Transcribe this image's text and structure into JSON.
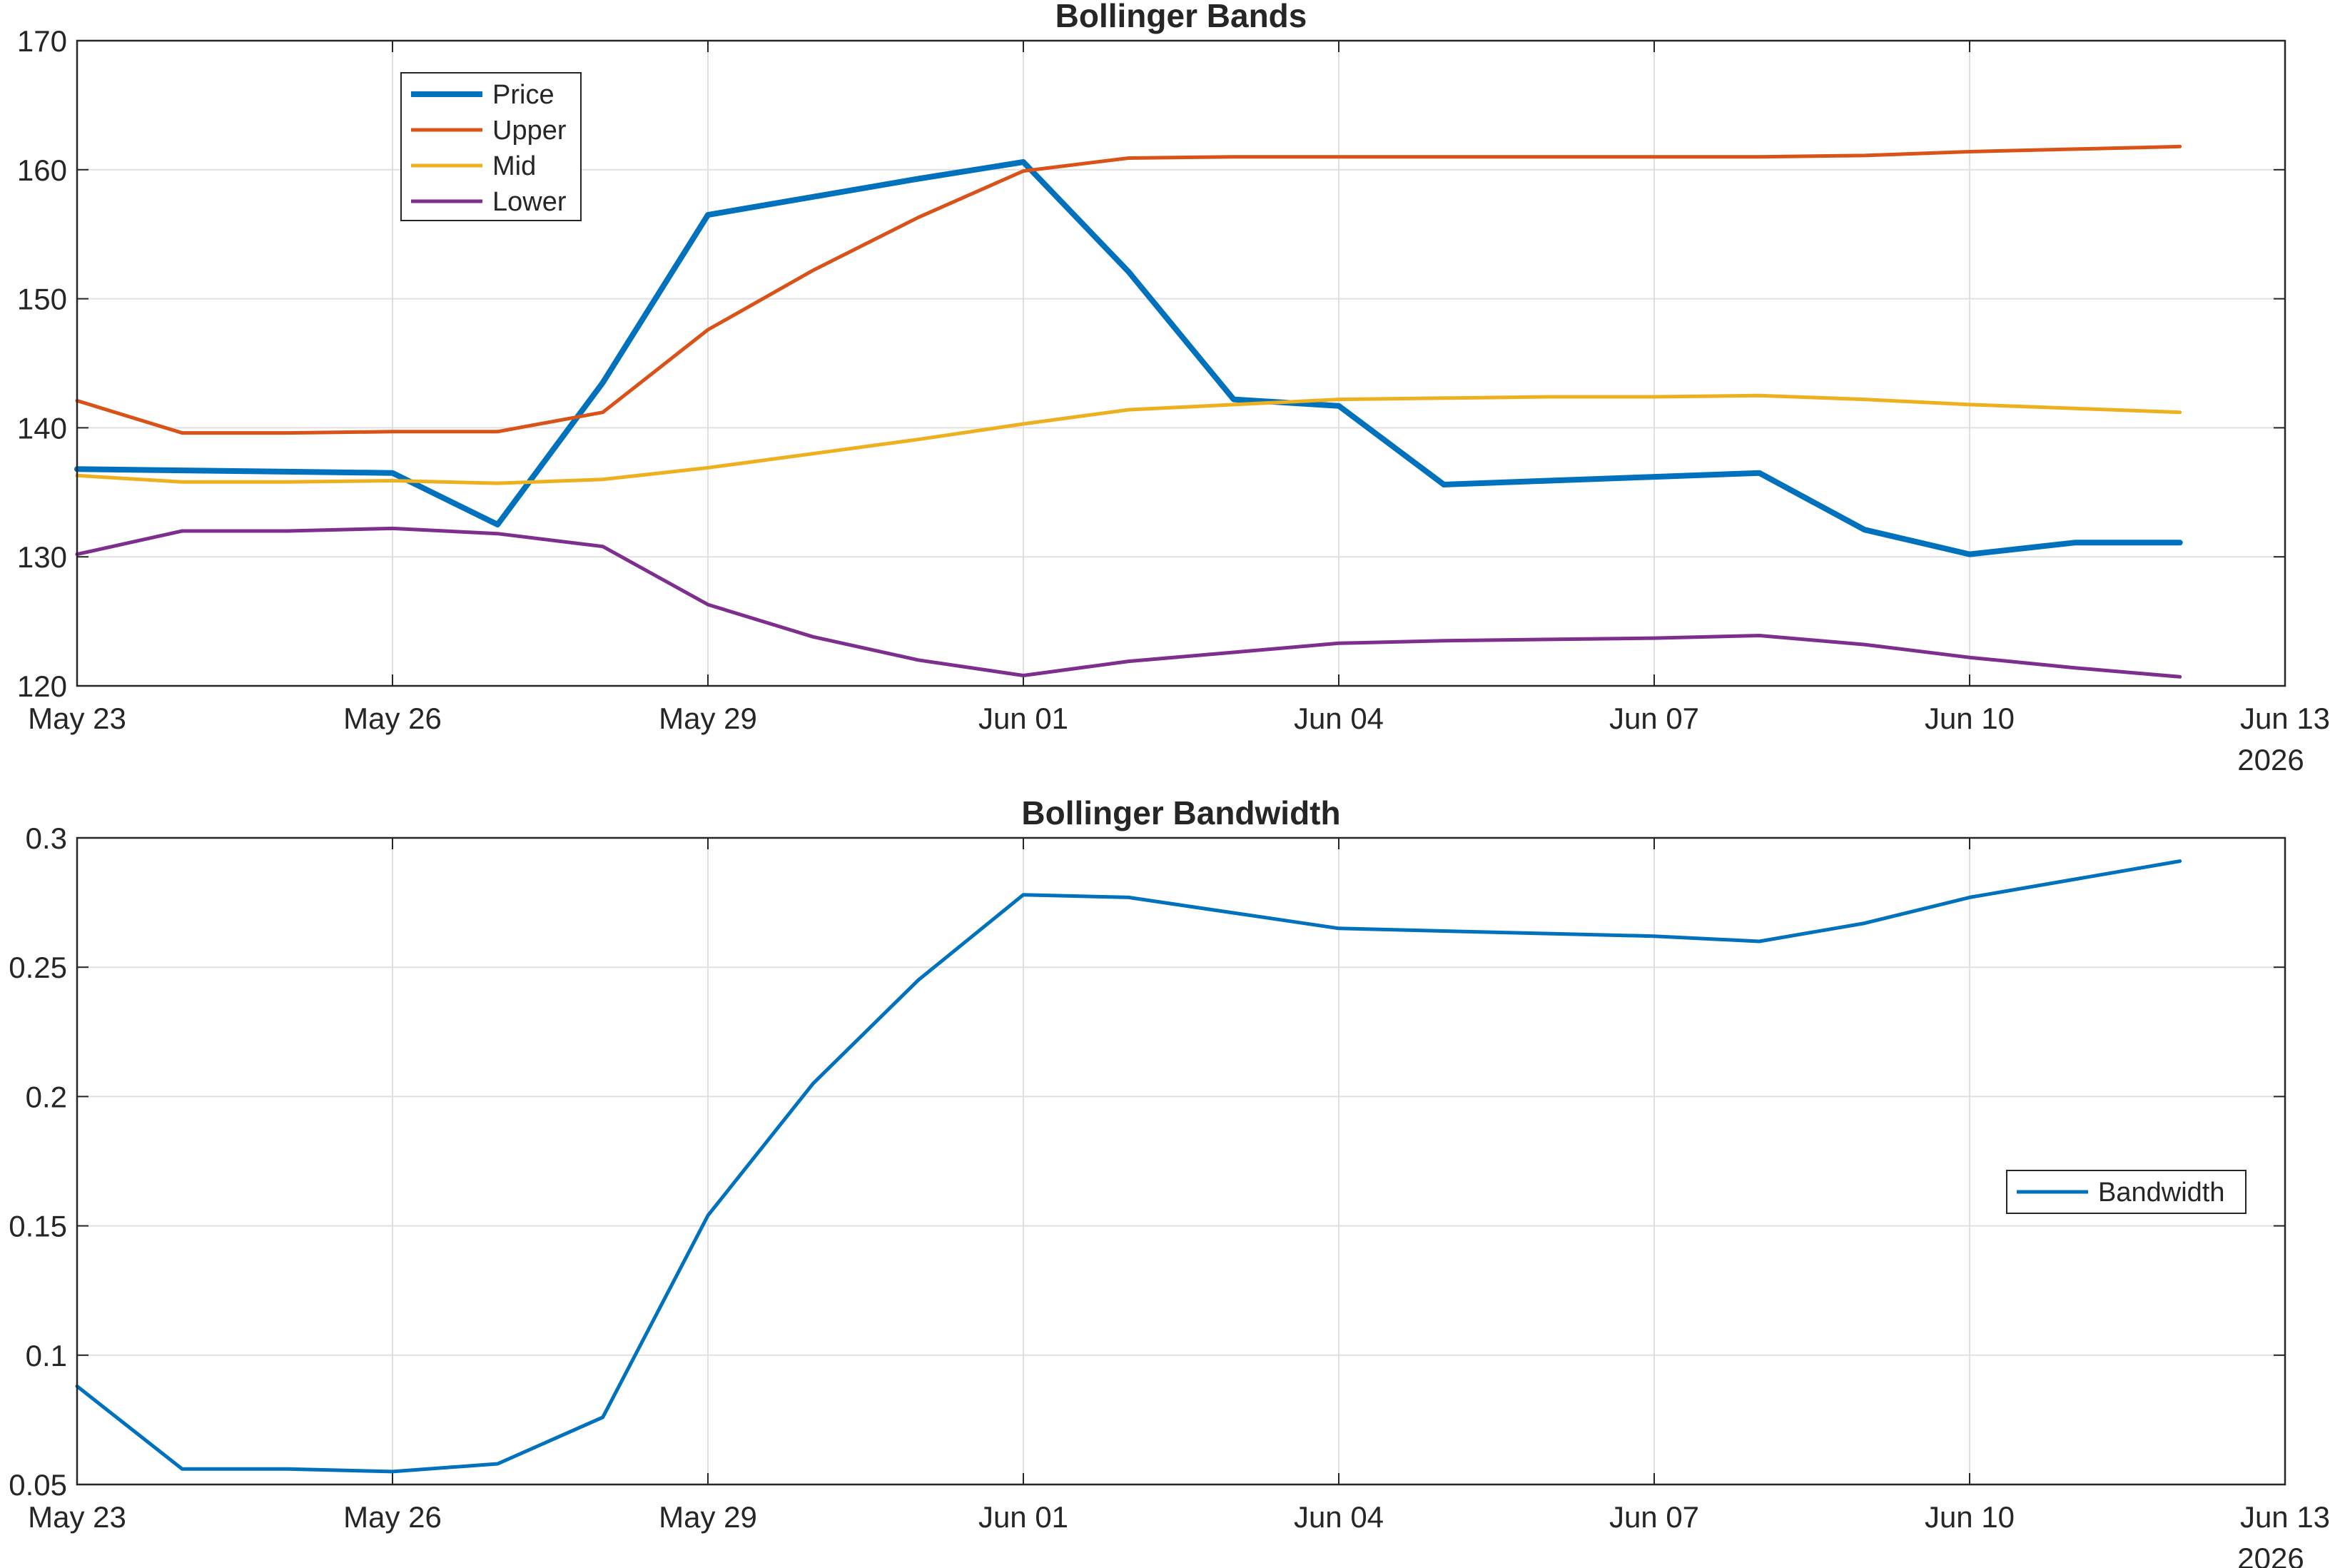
{
  "chart_data": [
    {
      "type": "line",
      "title": "Bollinger Bands",
      "xlabel": "",
      "ylabel": "",
      "x_axis": "date",
      "xlim": [
        "2026-05-23",
        "2026-06-13"
      ],
      "x_ticks": [
        "2026-05-23",
        "2026-05-26",
        "2026-05-29",
        "2026-06-01",
        "2026-06-04",
        "2026-06-07",
        "2026-06-10",
        "2026-06-13"
      ],
      "x_tick_labels": [
        "May 23",
        "May 26",
        "May 29",
        "Jun 01",
        "Jun 04",
        "Jun 07",
        "Jun 10",
        "Jun 13"
      ],
      "x_secondary_label": "2026",
      "ylim": [
        120,
        170
      ],
      "y_ticks": [
        120,
        130,
        140,
        150,
        160,
        170
      ],
      "grid": true,
      "legend_position": "top-left",
      "x": [
        "2026-05-23",
        "2026-05-24",
        "2026-05-25",
        "2026-05-26",
        "2026-05-27",
        "2026-05-28",
        "2026-05-29",
        "2026-05-30",
        "2026-05-31",
        "2026-06-01",
        "2026-06-02",
        "2026-06-03",
        "2026-06-04",
        "2026-06-05",
        "2026-06-06",
        "2026-06-07",
        "2026-06-08",
        "2026-06-09",
        "2026-06-10",
        "2026-06-11",
        "2026-06-12"
      ],
      "series": [
        {
          "name": "Price",
          "color": "#0072BD",
          "values": [
            136.8,
            136.7,
            136.6,
            136.5,
            132.5,
            143.5,
            156.5,
            157.9,
            159.3,
            160.6,
            152.1,
            142.2,
            141.7,
            135.6,
            135.9,
            136.2,
            136.5,
            132.1,
            130.2,
            131.1,
            131.1
          ]
        },
        {
          "name": "Upper",
          "color": "#D95319",
          "values": [
            142.1,
            139.6,
            139.6,
            139.7,
            139.7,
            141.2,
            147.6,
            152.2,
            156.3,
            159.9,
            160.9,
            161.0,
            161.0,
            161.0,
            161.0,
            161.0,
            161.0,
            161.1,
            161.4,
            161.6,
            161.8
          ]
        },
        {
          "name": "Mid",
          "color": "#EDB120",
          "values": [
            136.3,
            135.8,
            135.8,
            135.9,
            135.7,
            136.0,
            136.9,
            138.0,
            139.1,
            140.3,
            141.4,
            141.8,
            142.2,
            142.3,
            142.4,
            142.4,
            142.5,
            142.2,
            141.8,
            141.5,
            141.2
          ]
        },
        {
          "name": "Lower",
          "color": "#7E2F8E",
          "values": [
            130.2,
            132.0,
            132.0,
            132.2,
            131.8,
            130.8,
            126.3,
            123.8,
            122.0,
            120.8,
            121.9,
            122.6,
            123.3,
            123.5,
            123.6,
            123.7,
            123.9,
            123.2,
            122.2,
            121.4,
            120.7
          ]
        }
      ]
    },
    {
      "type": "line",
      "title": "Bollinger Bandwidth",
      "xlabel": "",
      "ylabel": "",
      "x_axis": "date",
      "xlim": [
        "2026-05-23",
        "2026-06-13"
      ],
      "x_ticks": [
        "2026-05-23",
        "2026-05-26",
        "2026-05-29",
        "2026-06-01",
        "2026-06-04",
        "2026-06-07",
        "2026-06-10",
        "2026-06-13"
      ],
      "x_tick_labels": [
        "May 23",
        "May 26",
        "May 29",
        "Jun 01",
        "Jun 04",
        "Jun 07",
        "Jun 10",
        "Jun 13"
      ],
      "x_secondary_label": "2026",
      "ylim": [
        0.05,
        0.3
      ],
      "y_ticks": [
        0.05,
        0.1,
        0.15,
        0.2,
        0.25,
        0.3
      ],
      "y_tick_labels": [
        "0.05",
        "0.1",
        "0.15",
        "0.2",
        "0.25",
        "0.3"
      ],
      "grid": true,
      "legend_position": "right",
      "x": [
        "2026-05-23",
        "2026-05-24",
        "2026-05-25",
        "2026-05-26",
        "2026-05-27",
        "2026-05-28",
        "2026-05-29",
        "2026-05-30",
        "2026-05-31",
        "2026-06-01",
        "2026-06-02",
        "2026-06-03",
        "2026-06-04",
        "2026-06-05",
        "2026-06-06",
        "2026-06-07",
        "2026-06-08",
        "2026-06-09",
        "2026-06-10",
        "2026-06-11",
        "2026-06-12"
      ],
      "series": [
        {
          "name": "Bandwidth",
          "color": "#0072BD",
          "values": [
            0.088,
            0.056,
            0.056,
            0.055,
            0.058,
            0.076,
            0.154,
            0.205,
            0.245,
            0.278,
            0.277,
            0.271,
            0.265,
            0.264,
            0.263,
            0.262,
            0.26,
            0.267,
            0.277,
            0.284,
            0.291
          ]
        }
      ]
    }
  ]
}
